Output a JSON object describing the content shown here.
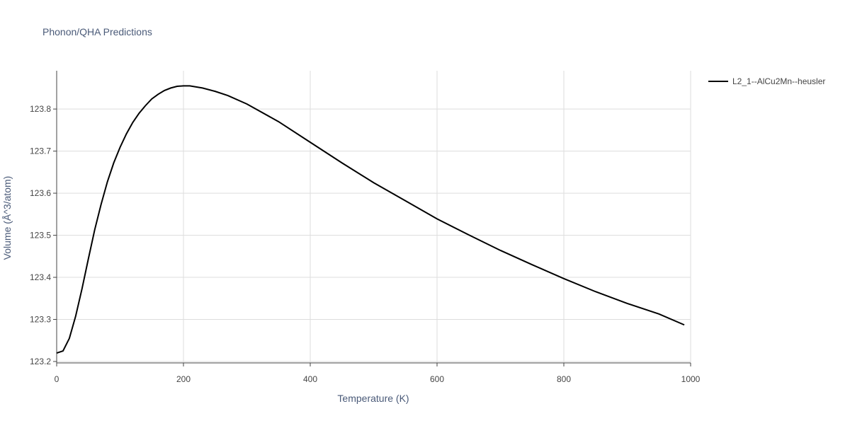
{
  "chart_data": {
    "type": "line",
    "title": "Phonon/QHA Predictions",
    "x_label": "Temperature (K)",
    "y_label": "Volume (Å^3/atom)",
    "x": [
      0,
      10,
      20,
      30,
      40,
      50,
      60,
      70,
      80,
      90,
      100,
      110,
      120,
      130,
      140,
      150,
      160,
      170,
      180,
      190,
      200,
      210,
      230,
      250,
      270,
      300,
      350,
      400,
      450,
      500,
      550,
      600,
      650,
      700,
      750,
      800,
      850,
      900,
      950,
      990
    ],
    "series": [
      {
        "name": "L2_1--AlCu2Mn--heusler",
        "color": "#000000",
        "values": [
          123.22,
          123.225,
          123.255,
          123.308,
          123.373,
          123.444,
          123.513,
          123.573,
          123.627,
          123.672,
          123.709,
          123.741,
          123.768,
          123.79,
          123.808,
          123.824,
          123.835,
          123.844,
          123.85,
          123.854,
          123.855,
          123.855,
          123.85,
          123.842,
          123.832,
          123.812,
          123.77,
          123.721,
          123.672,
          123.625,
          123.582,
          123.539,
          123.501,
          123.464,
          123.43,
          123.397,
          123.366,
          123.338,
          123.313,
          123.287
        ]
      }
    ],
    "xlim": [
      0,
      1000
    ],
    "xticks": [
      0,
      200,
      400,
      600,
      800,
      1000
    ],
    "ylim": [
      123.1966,
      123.891
    ],
    "yticks": [
      123.2,
      123.3,
      123.4,
      123.5,
      123.6,
      123.7,
      123.8
    ],
    "grid": true,
    "legend": "top-right"
  }
}
